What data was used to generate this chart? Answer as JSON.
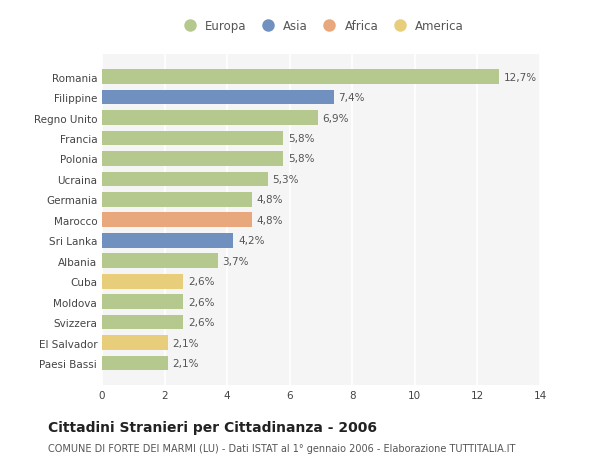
{
  "categories": [
    "Romania",
    "Filippine",
    "Regno Unito",
    "Francia",
    "Polonia",
    "Ucraina",
    "Germania",
    "Marocco",
    "Sri Lanka",
    "Albania",
    "Cuba",
    "Moldova",
    "Svizzera",
    "El Salvador",
    "Paesi Bassi"
  ],
  "values": [
    12.7,
    7.4,
    6.9,
    5.8,
    5.8,
    5.3,
    4.8,
    4.8,
    4.2,
    3.7,
    2.6,
    2.6,
    2.6,
    2.1,
    2.1
  ],
  "labels": [
    "12,7%",
    "7,4%",
    "6,9%",
    "5,8%",
    "5,8%",
    "5,3%",
    "4,8%",
    "4,8%",
    "4,2%",
    "3,7%",
    "2,6%",
    "2,6%",
    "2,6%",
    "2,1%",
    "2,1%"
  ],
  "continents": [
    "Europa",
    "Asia",
    "Europa",
    "Europa",
    "Europa",
    "Europa",
    "Europa",
    "Africa",
    "Asia",
    "Europa",
    "America",
    "Europa",
    "Europa",
    "America",
    "Europa"
  ],
  "colors": {
    "Europa": "#b5c98e",
    "Asia": "#7090c0",
    "Africa": "#e8a87c",
    "America": "#e8ce7a"
  },
  "xlim": [
    0,
    14
  ],
  "xticks": [
    0,
    2,
    4,
    6,
    8,
    10,
    12,
    14
  ],
  "title": "Cittadini Stranieri per Cittadinanza - 2006",
  "subtitle": "COMUNE DI FORTE DEI MARMI (LU) - Dati ISTAT al 1° gennaio 2006 - Elaborazione TUTTITALIA.IT",
  "background_color": "#ffffff",
  "plot_bg_color": "#f5f5f5",
  "grid_color": "#ffffff",
  "bar_height": 0.72,
  "label_fontsize": 7.5,
  "tick_fontsize": 7.5,
  "title_fontsize": 10,
  "subtitle_fontsize": 7
}
